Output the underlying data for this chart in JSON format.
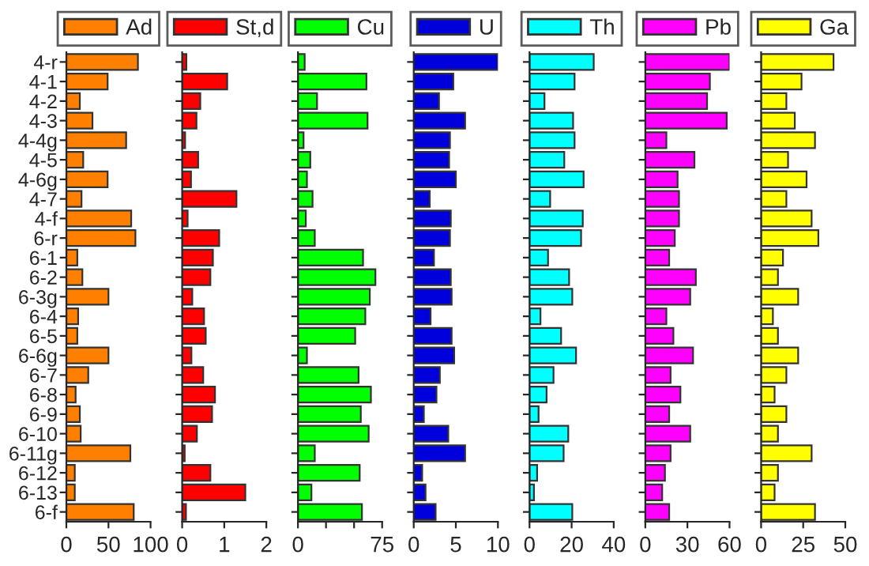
{
  "chart_data": [
    {
      "type": "bar",
      "orientation": "horizontal",
      "legend": "top",
      "categories": [
        "4-r",
        "4-1",
        "4-2",
        "4-3",
        "4-4g",
        "4-5",
        "4-6g",
        "4-7",
        "4-f",
        "6-r",
        "6-1",
        "6-2",
        "6-3g",
        "6-4",
        "6-5",
        "6-6g",
        "6-7",
        "6-8",
        "6-9",
        "6-10",
        "6-11g",
        "6-12",
        "6-13",
        "6-f"
      ],
      "xlim": [
        0,
        100
      ],
      "xticks": [
        0,
        50,
        100
      ],
      "series": [
        {
          "name": "Ad",
          "color": "#ff8000",
          "values": [
            85,
            49,
            16,
            31,
            71,
            20,
            49,
            18,
            77,
            82,
            13,
            19,
            50,
            14,
            13,
            50,
            26,
            11,
            16,
            17,
            76,
            10,
            10,
            80
          ]
        }
      ]
    },
    {
      "type": "bar",
      "orientation": "horizontal",
      "legend": "top",
      "tick_labels": "x",
      "xlim": [
        0,
        2
      ],
      "xticks": [
        0,
        1,
        2
      ],
      "series": [
        {
          "name": "St,d",
          "color": "#ff0000",
          "values": [
            0.1,
            1.07,
            0.43,
            0.34,
            0.07,
            0.38,
            0.21,
            1.29,
            0.13,
            0.88,
            0.73,
            0.67,
            0.24,
            0.52,
            0.56,
            0.22,
            0.5,
            0.78,
            0.71,
            0.35,
            0.06,
            0.67,
            1.5,
            0.09
          ]
        }
      ]
    },
    {
      "type": "bar",
      "orientation": "horizontal",
      "legend": "top",
      "tick_labels": "x",
      "xlim": [
        0,
        75
      ],
      "xticks": [
        0,
        {
          "value": 25,
          "label": null
        },
        {
          "value": 50,
          "label": null
        },
        75
      ],
      "series": [
        {
          "name": "Cu",
          "color": "#00ff00",
          "values": [
            6,
            61,
            17,
            62,
            5,
            11,
            8,
            13,
            7,
            15,
            58,
            69,
            64,
            60,
            51,
            8,
            54,
            65,
            56,
            63,
            15,
            55,
            12,
            57
          ]
        }
      ]
    },
    {
      "type": "bar",
      "orientation": "horizontal",
      "legend": "top",
      "tick_labels": "x",
      "xlim": [
        0,
        10
      ],
      "xticks": [
        0,
        5,
        10
      ],
      "series": [
        {
          "name": "U",
          "color": "#0000dd",
          "values": [
            10,
            4.7,
            3.0,
            6.1,
            4.3,
            4.2,
            5.0,
            1.9,
            4.4,
            4.3,
            2.4,
            4.4,
            4.5,
            2.0,
            4.5,
            4.8,
            3.1,
            2.7,
            1.2,
            4.1,
            6.1,
            1.0,
            1.4,
            2.6
          ]
        }
      ]
    },
    {
      "type": "bar",
      "orientation": "horizontal",
      "legend": "top",
      "tick_labels": "x",
      "xlim": [
        0,
        40
      ],
      "xticks": [
        0,
        20,
        40
      ],
      "series": [
        {
          "name": "Th",
          "color": "#00ffff",
          "values": [
            30.5,
            21.4,
            7.1,
            20.7,
            21.4,
            16.5,
            25.7,
            9.8,
            25.3,
            24.5,
            8.8,
            18.8,
            20.3,
            5.2,
            15,
            22.1,
            11.4,
            8.1,
            4.3,
            18.4,
            16.2,
            3.6,
            2.1,
            20.3
          ]
        }
      ]
    },
    {
      "type": "bar",
      "orientation": "horizontal",
      "legend": "top",
      "tick_labels": "x",
      "xlim": [
        0,
        60
      ],
      "xticks": [
        0,
        30,
        60
      ],
      "series": [
        {
          "name": "Pb",
          "color": "#ff00ff",
          "values": [
            60,
            46,
            44,
            58,
            15,
            35,
            23,
            24,
            24,
            21,
            17,
            36,
            32,
            15,
            20,
            34,
            18,
            25,
            17,
            32,
            18,
            14,
            12,
            17
          ]
        }
      ]
    },
    {
      "type": "bar",
      "orientation": "horizontal",
      "legend": "top",
      "tick_labels": "x",
      "xlim": [
        0,
        50
      ],
      "xticks": [
        0,
        25,
        50
      ],
      "series": [
        {
          "name": "Ga",
          "color": "#ffff00",
          "values": [
            43,
            24,
            15,
            20,
            32,
            16,
            27,
            15,
            30,
            34,
            13,
            10,
            22,
            7,
            10,
            22,
            15,
            8,
            15,
            10,
            30,
            10,
            8,
            32
          ]
        }
      ]
    }
  ]
}
